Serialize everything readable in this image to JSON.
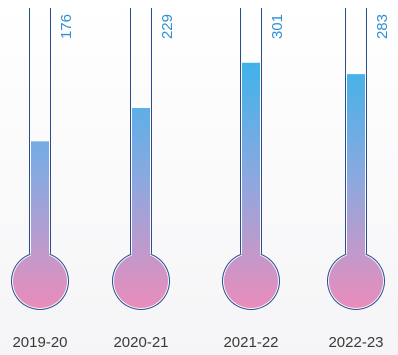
{
  "chart_data": {
    "type": "bar",
    "style": "thermometer",
    "categories": [
      "2019-20",
      "2020-21",
      "2021-22",
      "2022-23"
    ],
    "values": [
      176,
      229,
      301,
      283
    ],
    "ylim": [
      0,
      350
    ],
    "colors": {
      "top": "#16b8ee",
      "bottom": "#f28ab8",
      "outline": "#2a4d8f",
      "value_text": "#2f8fd0",
      "category_text": "#3a3a3a"
    }
  }
}
